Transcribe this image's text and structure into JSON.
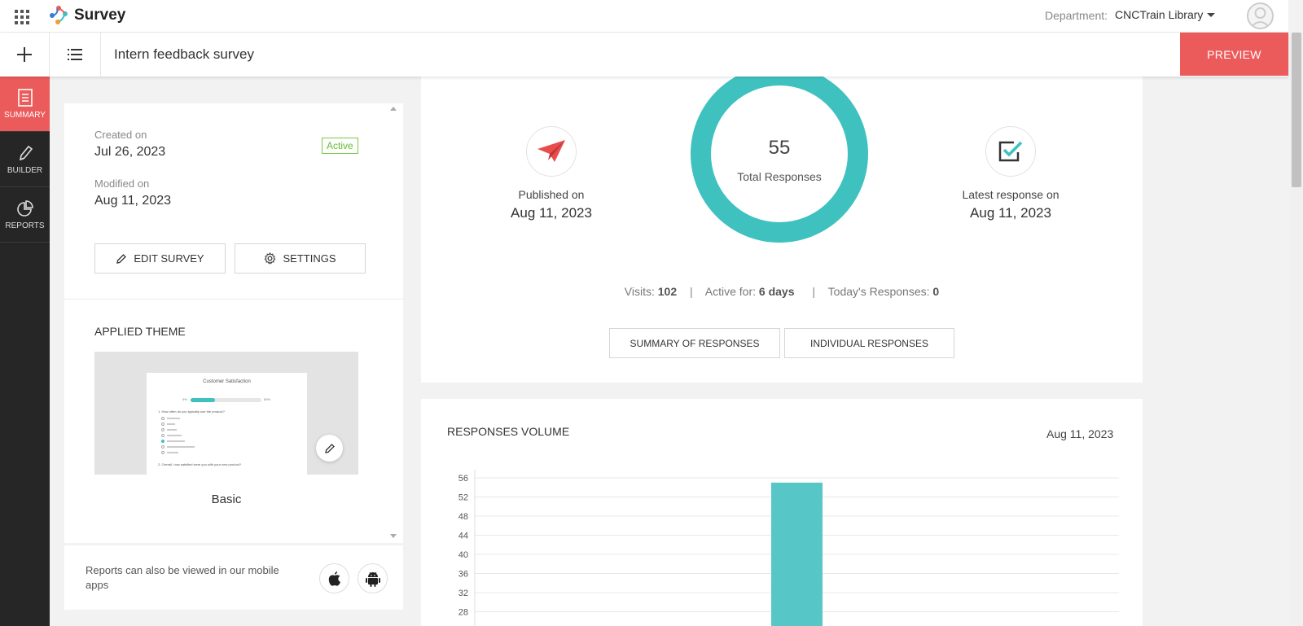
{
  "topbar": {
    "app_name": "Survey",
    "department_label": "Department:",
    "department_value": "CNCTrain Library"
  },
  "subbar": {
    "survey_title": "Intern feedback survey",
    "preview_label": "PREVIEW"
  },
  "leftnav": {
    "items": [
      {
        "label": "SUMMARY",
        "icon": "document-icon",
        "active": true
      },
      {
        "label": "BUILDER",
        "icon": "pencil-icon",
        "active": false
      },
      {
        "label": "REPORTS",
        "icon": "pie-chart-icon",
        "active": false
      }
    ]
  },
  "survey_info": {
    "created_label": "Created on",
    "created_date": "Jul 26, 2023",
    "modified_label": "Modified on",
    "modified_date": "Aug 11, 2023",
    "status": "Active",
    "edit_label": "EDIT SURVEY",
    "settings_label": "SETTINGS"
  },
  "theme": {
    "heading": "APPLIED THEME",
    "name": "Basic",
    "preview_title": "Customer Satisfaction",
    "preview_progress_left": "0%",
    "preview_progress_right": "50%",
    "preview_progress": 0.35,
    "preview_q1": "1. How often do you typically use the product?",
    "preview_q2": "2. Overall, how satisfied were you with your new product?"
  },
  "mobile": {
    "text": "Reports can also be viewed in our mobile apps",
    "apple_icon": "apple-icon",
    "android_icon": "android-icon"
  },
  "stats": {
    "published_label": "Published on",
    "published_date": "Aug 11, 2023",
    "total_responses": "55",
    "total_label": "Total Responses",
    "latest_label": "Latest response on",
    "latest_date": "Aug 11, 2023",
    "visits_label": "Visits:",
    "visits_value": "102",
    "active_label": "Active for:",
    "active_value": "6 days",
    "today_label": "Today's Responses:",
    "today_value": "0",
    "summary_btn": "SUMMARY OF RESPONSES",
    "individual_btn": "INDIVIDUAL RESPONSES"
  },
  "colors": {
    "accent_red": "#ec5b5b",
    "teal": "#3fc1c0",
    "active_green": "#66bb33"
  },
  "volume": {
    "title": "RESPONSES VOLUME",
    "date": "Aug 11, 2023"
  },
  "chart_data": {
    "type": "bar",
    "categories": [
      "Aug 11, 2023"
    ],
    "values": [
      55
    ],
    "y_ticks": [
      56,
      52,
      48,
      44,
      40,
      36,
      32,
      28
    ],
    "ylim": [
      28,
      56
    ],
    "grid": true,
    "bar_color": "#56c7c6"
  }
}
